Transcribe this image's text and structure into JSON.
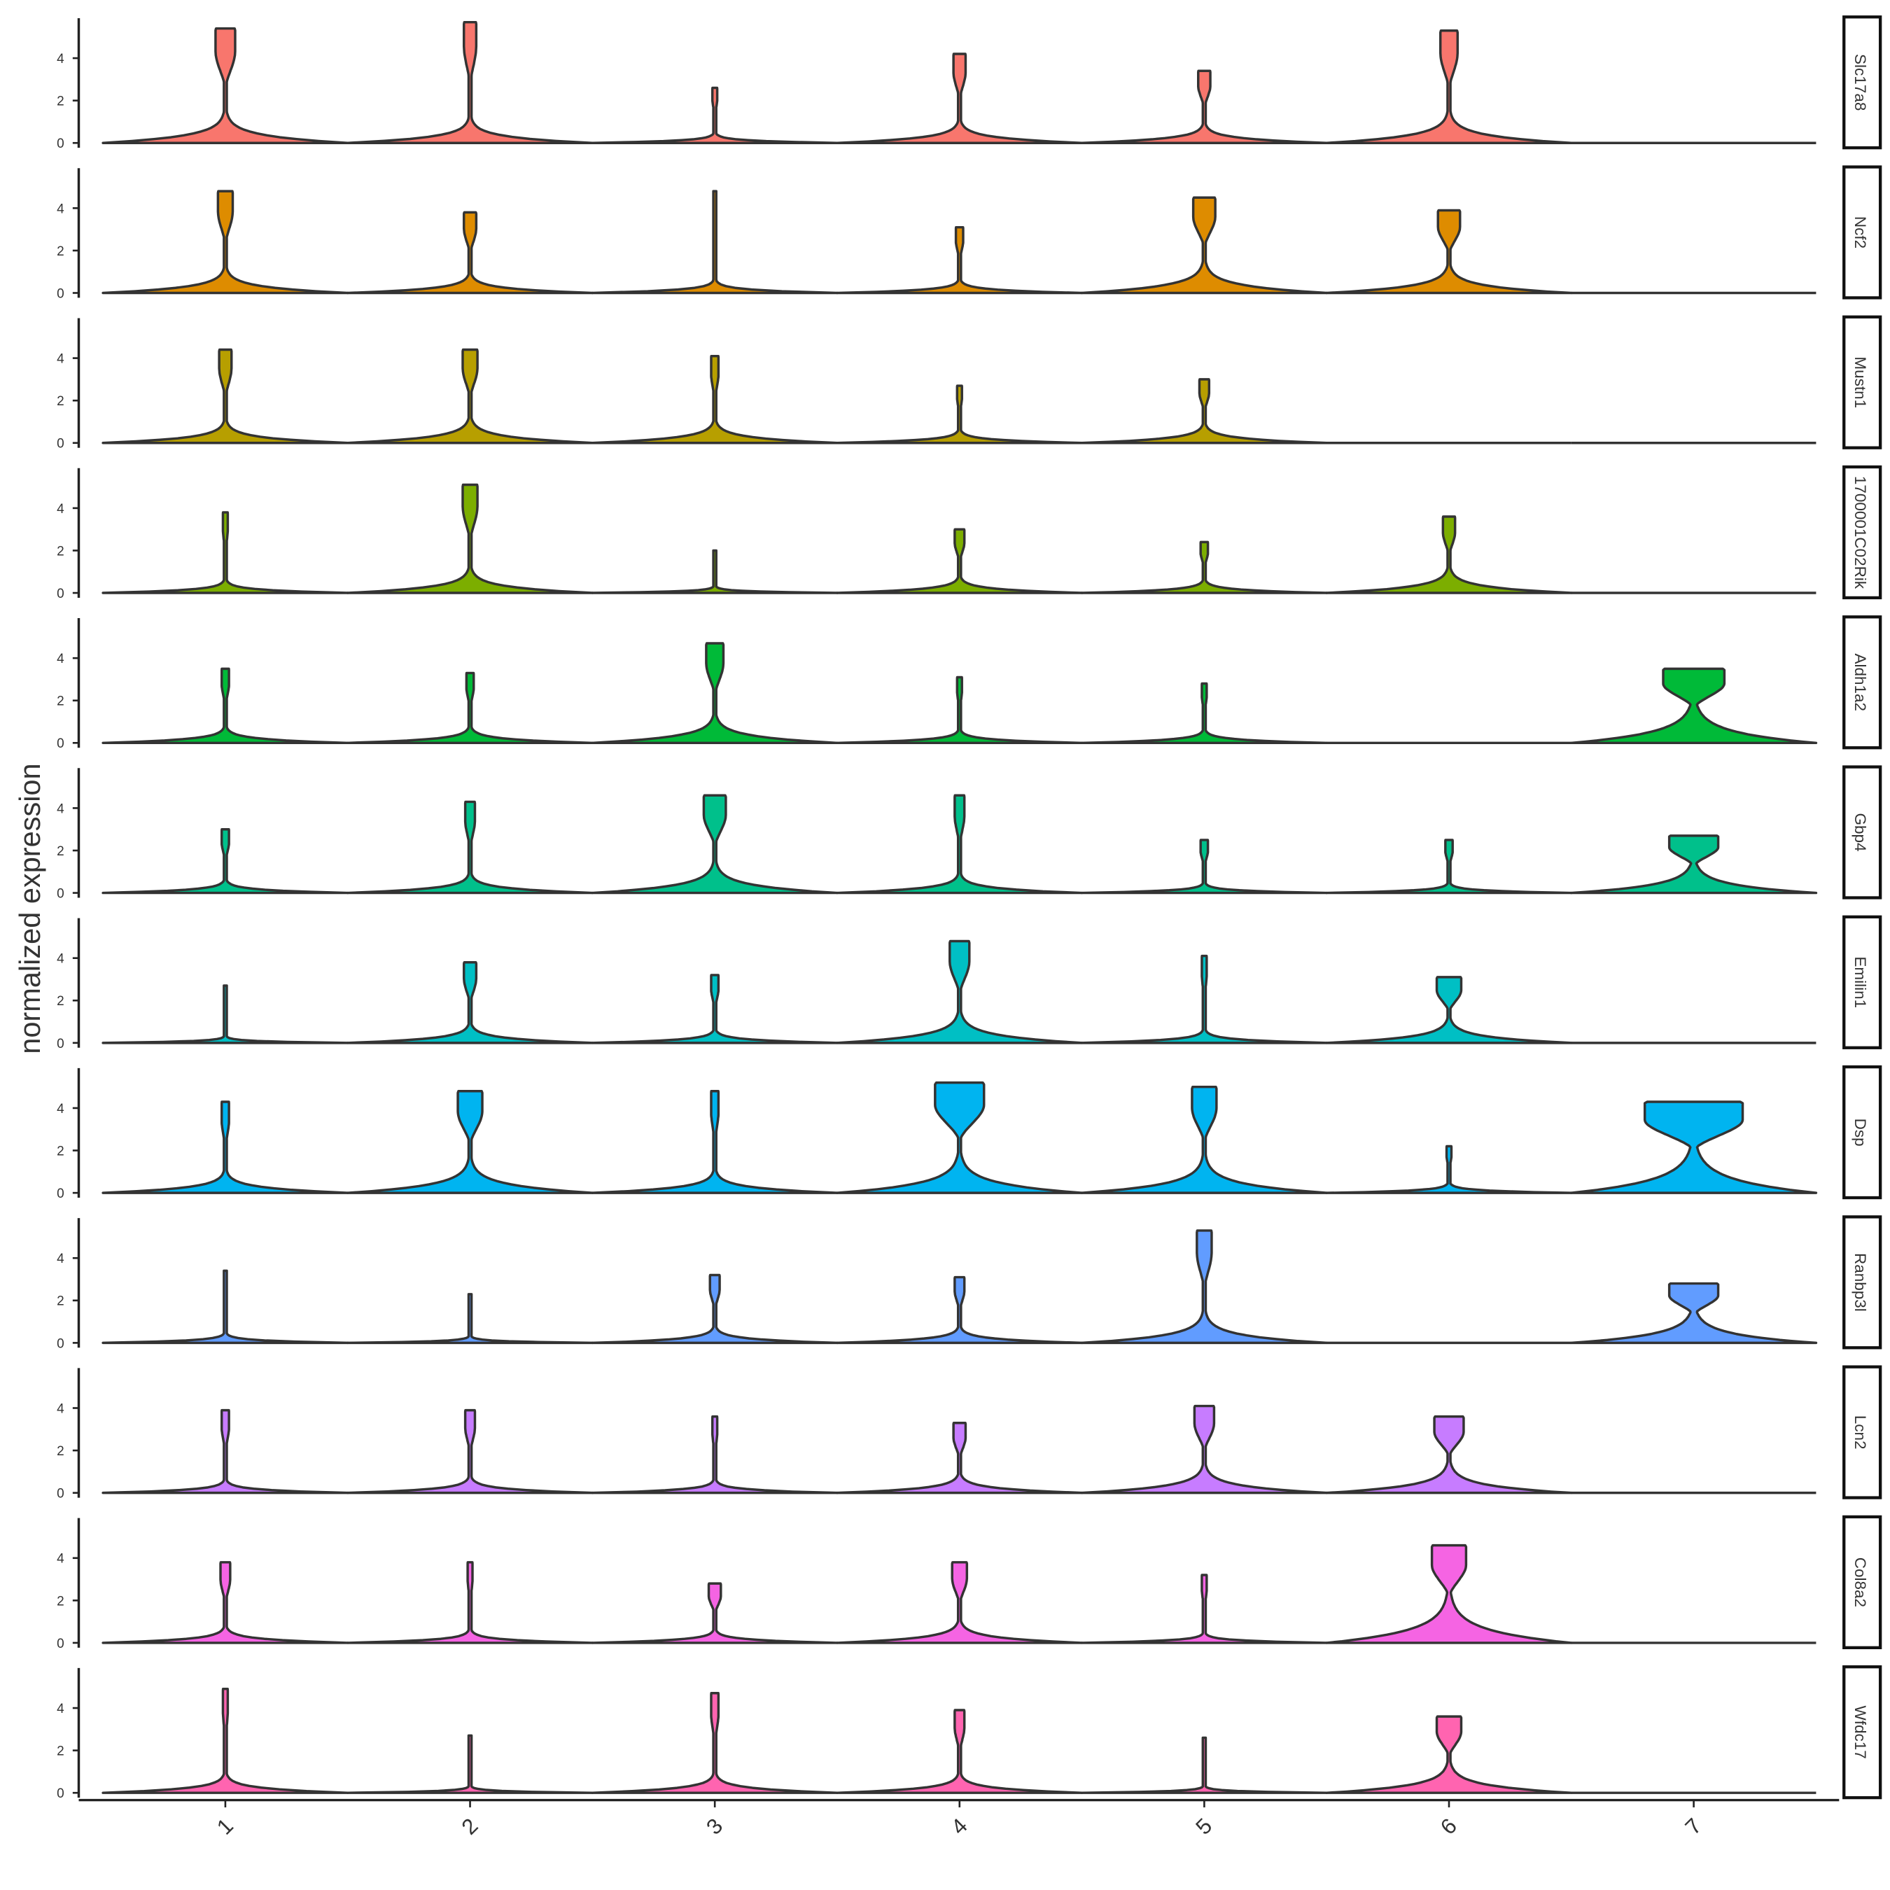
{
  "chart_data": {
    "type": "violin",
    "ylabel": "normalized expression",
    "xlabel": "",
    "categories": [
      "1",
      "2",
      "3",
      "4",
      "5",
      "6",
      "7"
    ],
    "yticks": [
      0,
      2,
      4
    ],
    "ylim": [
      0,
      5.8
    ],
    "note_encoding": "each violin: [max expression, height of base density hump, relative width of upper density]",
    "genes": [
      {
        "name": "Slc17a8",
        "color": "#F8766D",
        "violins": [
          [
            5.4,
            1.0,
            0.08
          ],
          [
            5.7,
            0.8,
            0.05
          ],
          [
            2.6,
            0.3,
            0.02
          ],
          [
            4.2,
            0.7,
            0.05
          ],
          [
            3.4,
            0.6,
            0.05
          ],
          [
            5.3,
            1.0,
            0.07
          ],
          null
        ]
      },
      {
        "name": "Ncf2",
        "color": "#DE8C00",
        "violins": [
          [
            4.8,
            0.8,
            0.06
          ],
          [
            3.8,
            0.6,
            0.05
          ],
          [
            4.8,
            0.4,
            0.01
          ],
          [
            3.1,
            0.4,
            0.03
          ],
          [
            4.5,
            1.0,
            0.09
          ],
          [
            3.9,
            0.9,
            0.09
          ],
          null
        ]
      },
      {
        "name": "Mustn1",
        "color": "#B79F00",
        "violins": [
          [
            4.4,
            0.7,
            0.05
          ],
          [
            4.4,
            0.8,
            0.06
          ],
          [
            4.1,
            0.7,
            0.03
          ],
          [
            2.7,
            0.4,
            0.02
          ],
          [
            3.0,
            0.6,
            0.04
          ],
          null,
          null
        ]
      },
      {
        "name": "1700001C02Rik",
        "color": "#7CAE00",
        "violins": [
          [
            3.8,
            0.4,
            0.02
          ],
          [
            5.1,
            0.8,
            0.06
          ],
          [
            2.0,
            0.2,
            0.01
          ],
          [
            3.0,
            0.5,
            0.04
          ],
          [
            2.4,
            0.4,
            0.03
          ],
          [
            3.6,
            0.8,
            0.05
          ],
          null
        ]
      },
      {
        "name": "Aldh1a2",
        "color": "#00BA38",
        "violins": [
          [
            3.5,
            0.5,
            0.03
          ],
          [
            3.3,
            0.5,
            0.03
          ],
          [
            4.7,
            0.9,
            0.07
          ],
          [
            3.1,
            0.4,
            0.02
          ],
          [
            2.8,
            0.4,
            0.02
          ],
          null,
          [
            3.5,
            1.5,
            0.25
          ]
        ]
      },
      {
        "name": "Gbp4",
        "color": "#00C08B",
        "violins": [
          [
            3.0,
            0.4,
            0.03
          ],
          [
            4.3,
            0.6,
            0.04
          ],
          [
            4.6,
            1.0,
            0.09
          ],
          [
            4.6,
            0.6,
            0.04
          ],
          [
            2.5,
            0.3,
            0.03
          ],
          [
            2.5,
            0.3,
            0.03
          ],
          [
            2.7,
            1.1,
            0.2
          ]
        ]
      },
      {
        "name": "Emilin1",
        "color": "#00BFC4",
        "violins": [
          [
            2.7,
            0.2,
            0.01
          ],
          [
            3.8,
            0.6,
            0.05
          ],
          [
            3.2,
            0.4,
            0.03
          ],
          [
            4.8,
            1.0,
            0.08
          ],
          [
            4.1,
            0.4,
            0.02
          ],
          [
            3.1,
            0.8,
            0.1
          ],
          null
        ]
      },
      {
        "name": "Dsp",
        "color": "#00B4F0",
        "violins": [
          [
            4.3,
            0.7,
            0.03
          ],
          [
            4.8,
            1.1,
            0.1
          ],
          [
            4.8,
            0.7,
            0.03
          ],
          [
            5.2,
            1.3,
            0.2
          ],
          [
            5.0,
            1.2,
            0.1
          ],
          [
            2.2,
            0.3,
            0.02
          ],
          [
            4.3,
            1.8,
            0.4
          ]
        ]
      },
      {
        "name": "Ranbp3l",
        "color": "#619CFF",
        "violins": [
          [
            3.4,
            0.3,
            0.01
          ],
          [
            2.3,
            0.2,
            0.01
          ],
          [
            3.2,
            0.5,
            0.04
          ],
          [
            3.1,
            0.5,
            0.04
          ],
          [
            5.3,
            1.0,
            0.06
          ],
          null,
          [
            2.8,
            1.2,
            0.2
          ]
        ]
      },
      {
        "name": "Lcn2",
        "color": "#C77CFF",
        "violins": [
          [
            3.9,
            0.4,
            0.03
          ],
          [
            3.9,
            0.5,
            0.04
          ],
          [
            3.6,
            0.4,
            0.02
          ],
          [
            3.3,
            0.6,
            0.05
          ],
          [
            4.1,
            0.9,
            0.08
          ],
          [
            3.6,
            1.0,
            0.12
          ],
          null
        ]
      },
      {
        "name": "Col8a2",
        "color": "#F564E3",
        "violins": [
          [
            3.8,
            0.5,
            0.04
          ],
          [
            3.8,
            0.4,
            0.02
          ],
          [
            2.8,
            0.4,
            0.05
          ],
          [
            3.8,
            0.7,
            0.06
          ],
          [
            3.2,
            0.3,
            0.02
          ],
          [
            4.6,
            1.7,
            0.14
          ],
          null
        ]
      },
      {
        "name": "Wfdc17",
        "color": "#FF64B0",
        "violins": [
          [
            4.9,
            0.6,
            0.02
          ],
          [
            2.7,
            0.2,
            0.01
          ],
          [
            4.7,
            0.6,
            0.03
          ],
          [
            3.9,
            0.6,
            0.04
          ],
          [
            2.6,
            0.2,
            0.01
          ],
          [
            3.6,
            1.0,
            0.1
          ],
          null
        ]
      }
    ]
  }
}
